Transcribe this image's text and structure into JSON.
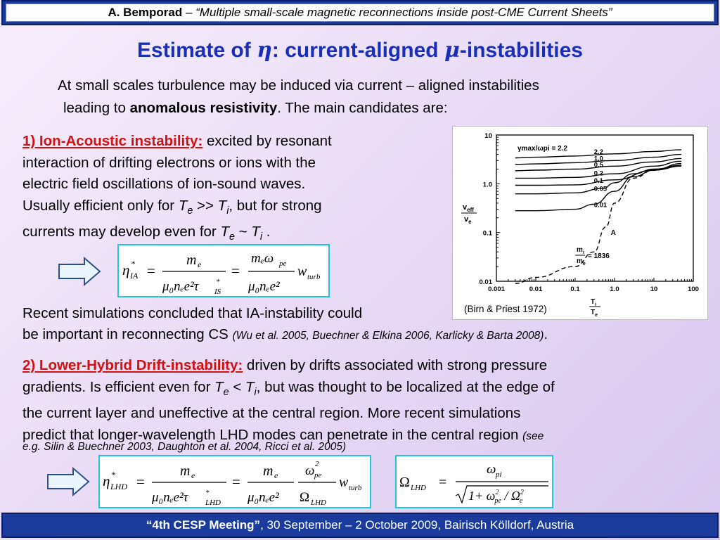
{
  "header": {
    "author": "A. Bemporad",
    "dash": " – ",
    "title": "“Multiple small-scale magnetic reconnections inside post-CME Current Sheets”"
  },
  "slide_title": {
    "part1": "Estimate of ",
    "eta": "η",
    "part2": ": current-aligned ",
    "mu": "μ",
    "part3": "-instabilities"
  },
  "intro": {
    "line1": "At small scales turbulence may be induced via current – aligned instabilities",
    "line2_pre": "leading to ",
    "line2_bold": "anomalous resistivity",
    "line2_post": ". The main candidates are:"
  },
  "section1": {
    "heading": "1) Ion-Acoustic instability:",
    "line1_rest": " excited by resonant",
    "line2": "interaction of drifting electrons or ions with the",
    "line3": "electric field oscillations of ion-sound waves.",
    "line4_pre": "Usually efficient only for ",
    "Te": "T",
    "e": "e",
    "gtgt": " >> ",
    "Ti": "T",
    "i": "i",
    "line4_post": ", but for strong",
    "line5_pre": "currents may develop even for ",
    "tilde": " ~ ",
    "period": " ."
  },
  "eq1": {
    "lhs": "η",
    "lhs_sub": "IA",
    "star": "*",
    "eq": "=",
    "num1": "m",
    "num1_sub": "e",
    "den1": "μ₀nₑe²τ",
    "den1_sub": "IS",
    "num2": "mₑω",
    "num2_sub": "pe",
    "den2": "μ₀nₑe²",
    "w": "w",
    "w_sub": "turb"
  },
  "recent": {
    "line1": "Recent simulations concluded that IA-instability could",
    "line2": "be important in reconnecting CS ",
    "refs": "(Wu et al. 2005, Buechner & Elkina 2006, Karlicky & Barta 2008)",
    "end": "."
  },
  "figure": {
    "caption": "(Birn & Priest 1972)",
    "ylabel_top": "v",
    "ylabel_top_sub": "eff",
    "ylabel_bot": "v",
    "ylabel_bot_sub": "e",
    "xlabel_top": "T",
    "xlabel_top_sub": "i",
    "xlabel_bot": "T",
    "xlabel_bot_sub": "e",
    "legend": "γmax/ωpi = 2.2",
    "mass_ratio": "= 1836",
    "mass_num": "m",
    "mass_num_sub": "i",
    "mass_den": "m",
    "mass_den_sub": "e",
    "curve_A": "A"
  },
  "chart_data": {
    "type": "line",
    "xscale": "log",
    "yscale": "log",
    "xlim": [
      0.001,
      100
    ],
    "ylim": [
      0.01,
      10
    ],
    "xticks": [
      "0.001",
      "0.01",
      "0.1",
      "1.0",
      "10",
      "100"
    ],
    "yticks": [
      "10",
      "1.0",
      "0.1",
      "0.01"
    ],
    "series": [
      {
        "name": "2.2",
        "x": [
          0.003,
          0.01,
          0.1,
          1,
          10,
          50
        ],
        "y": [
          3.4,
          3.5,
          3.7,
          4.1,
          4.6,
          5.0
        ]
      },
      {
        "name": "1.0",
        "x": [
          0.003,
          0.01,
          0.1,
          1,
          10,
          50
        ],
        "y": [
          2.5,
          2.55,
          2.7,
          3.0,
          3.5,
          4.0
        ]
      },
      {
        "name": "0.5",
        "x": [
          0.003,
          0.01,
          0.1,
          1,
          10,
          50
        ],
        "y": [
          1.85,
          1.9,
          2.0,
          2.3,
          2.8,
          3.3
        ]
      },
      {
        "name": "0.2",
        "x": [
          0.003,
          0.01,
          0.1,
          1,
          10,
          50
        ],
        "y": [
          1.3,
          1.3,
          1.35,
          1.6,
          2.3,
          2.9
        ]
      },
      {
        "name": "0.1",
        "x": [
          0.003,
          0.01,
          0.1,
          1,
          10,
          50
        ],
        "y": [
          0.93,
          0.93,
          0.95,
          1.2,
          1.9,
          2.6
        ]
      },
      {
        "name": "0.05",
        "x": [
          0.003,
          0.01,
          0.1,
          0.5,
          1,
          3,
          10,
          50
        ],
        "y": [
          0.62,
          0.62,
          0.65,
          0.8,
          1.05,
          1.6,
          2.0,
          2.4
        ]
      },
      {
        "name": "0.01",
        "x": [
          0.003,
          0.01,
          0.1,
          0.3,
          1,
          3,
          10,
          50
        ],
        "y": [
          0.28,
          0.28,
          0.3,
          0.38,
          0.7,
          1.4,
          1.9,
          2.3
        ]
      },
      {
        "name": "A",
        "dashed": true,
        "x": [
          0.003,
          0.01,
          0.1,
          0.3,
          0.6,
          1,
          3,
          10,
          50
        ],
        "y": [
          0.009,
          0.012,
          0.02,
          0.04,
          0.13,
          0.4,
          1.3,
          1.9,
          2.3
        ]
      }
    ]
  },
  "section2": {
    "heading": "2) Lower-Hybrid Drift-instability:",
    "line1_rest": " driven by drifts associated with strong pressure",
    "line2_pre": "gradients. Is efficient even for ",
    "lt": " < ",
    "line2_post": ", but was thought to be localized at the edge of",
    "line3": "the current layer and uneffective at the central region. More recent simulations",
    "line4": "predict that longer-wavelength LHD modes can penetrate in the central region ",
    "see": "(see",
    "line5": "e.g. Silin & Buechner 2003, Daughton et al. 2004, Ricci et al. 2005)"
  },
  "eq2": {
    "lhs": "η",
    "lhs_sub": "LHD",
    "star": "*",
    "eq": "=",
    "num1": "m",
    "num1_sub": "e",
    "den1": "μ₀nₑe²τ",
    "den1_sub": "LHD",
    "num2": "m",
    "num2_sub": "e",
    "den2": "μ₀nₑe²",
    "num3": "ω",
    "num3_sup": "2",
    "num3_sub": "pe",
    "den3": "Ω",
    "den3_sub": "LHD",
    "w": "w",
    "w_sub": "turb"
  },
  "eq3": {
    "lhs": "Ω",
    "lhs_sub": "LHD",
    "eq": "=",
    "num": "ω",
    "num_sub": "pi",
    "den_pre": "1+ ω",
    "den_sup": "2",
    "den_sub": "pe",
    "den_mid": " / Ω",
    "den_sup2": "2",
    "den_sub2": "e"
  },
  "footer": {
    "meeting": "“4th CESP Meeting”",
    "rest": ", 30 September – 2 October 2009, Bairisch Kölldorf, Austria"
  },
  "colors": {
    "title": "#1a2fb8",
    "highlight": "#d41010",
    "bar": "#1a3b9c",
    "box_border": "#22c4e0"
  }
}
